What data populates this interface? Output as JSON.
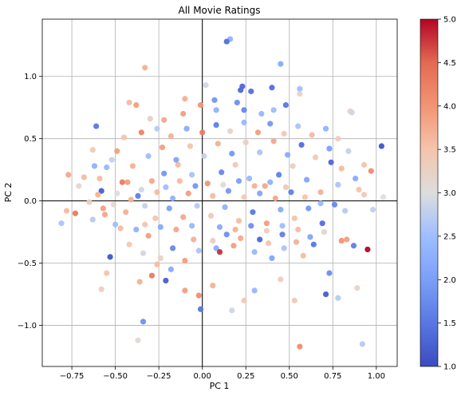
{
  "chart_data": {
    "type": "scatter",
    "title": "All Movie Ratings",
    "xlabel": "PC 1",
    "ylabel": "PC 2",
    "xlim": [
      -0.92,
      1.12
    ],
    "ylim": [
      -1.33,
      1.46
    ],
    "xticks": [
      -0.75,
      -0.5,
      -0.25,
      0.0,
      0.25,
      0.5,
      0.75,
      1.0
    ],
    "xtick_labels": [
      "−0.75",
      "−0.50",
      "−0.25",
      "0.00",
      "0.25",
      "0.50",
      "0.75",
      "1.00"
    ],
    "yticks": [
      -1.0,
      -0.5,
      0.0,
      0.5,
      1.0
    ],
    "ytick_labels": [
      "−1.0",
      "−0.5",
      "0.0",
      "0.5",
      "1.0"
    ],
    "grid": true,
    "origin_lines": true,
    "colormap": "coolwarm",
    "colorbar": {
      "range": [
        1.0,
        5.0
      ],
      "ticks": [
        1.0,
        1.5,
        2.0,
        2.5,
        3.0,
        3.5,
        4.0,
        4.5,
        5.0
      ],
      "tick_labels": [
        "1.0",
        "1.5",
        "2.0",
        "2.5",
        "3.0",
        "3.5",
        "4.0",
        "4.5",
        "5.0"
      ],
      "low_color": "#3b4cc0",
      "mid_color": "#dddddd",
      "high_color": "#b40426"
    },
    "points": [
      [
        0.16,
        1.3,
        2.3
      ],
      [
        0.14,
        1.28,
        1.4
      ],
      [
        0.45,
        1.1,
        2.2
      ],
      [
        0.23,
        0.92,
        1.3
      ],
      [
        0.22,
        0.89,
        1.3
      ],
      [
        0.28,
        0.88,
        1.4
      ],
      [
        0.4,
        0.91,
        1.4
      ],
      [
        -0.33,
        1.07,
        3.7
      ],
      [
        0.02,
        0.93,
        2.9
      ],
      [
        0.41,
        0.73,
        2.5
      ],
      [
        0.56,
        0.9,
        2.5
      ],
      [
        0.08,
        0.73,
        2.3
      ],
      [
        0.2,
        0.79,
        1.8
      ],
      [
        0.07,
        0.81,
        1.9
      ],
      [
        0.24,
        0.73,
        1.7
      ],
      [
        0.34,
        0.7,
        2.4
      ],
      [
        0.85,
        0.72,
        3.3
      ],
      [
        -0.38,
        0.77,
        3.9
      ],
      [
        -0.22,
        0.65,
        3.8
      ],
      [
        -0.11,
        0.7,
        3.9
      ],
      [
        -0.01,
        0.77,
        4.0
      ],
      [
        -0.1,
        0.82,
        3.7
      ],
      [
        0.48,
        0.77,
        1.5
      ],
      [
        0.56,
        0.86,
        3.2
      ],
      [
        0.86,
        0.71,
        2.9
      ],
      [
        -0.61,
        0.6,
        1.5
      ],
      [
        -0.63,
        0.41,
        3.4
      ],
      [
        -0.42,
        0.79,
        3.6
      ],
      [
        -0.3,
        0.66,
        3.3
      ],
      [
        1.03,
        0.44,
        1.1
      ],
      [
        0.93,
        0.29,
        3.5
      ],
      [
        0.97,
        0.24,
        4.1
      ],
      [
        -0.59,
        0.18,
        3.6
      ],
      [
        -0.55,
        0.27,
        2.4
      ],
      [
        -0.52,
        0.33,
        2.8
      ],
      [
        -0.58,
        0.08,
        1.2
      ],
      [
        -0.71,
        0.12,
        3.1
      ],
      [
        -0.77,
        0.21,
        3.8
      ],
      [
        -0.6,
        0.05,
        3.7
      ],
      [
        -0.46,
        0.15,
        4.3
      ],
      [
        -0.78,
        -0.08,
        3.6
      ],
      [
        -0.81,
        -0.18,
        2.6
      ],
      [
        -0.73,
        -0.1,
        4.3
      ],
      [
        -0.53,
        -0.45,
        1.1
      ],
      [
        -0.55,
        -0.58,
        3.5
      ],
      [
        -0.58,
        -0.71,
        3.3
      ],
      [
        -0.36,
        -0.65,
        3.7
      ],
      [
        -0.34,
        -0.97,
        1.8
      ],
      [
        -0.37,
        -1.12,
        3.1
      ],
      [
        -0.29,
        -0.6,
        4.3
      ],
      [
        -0.21,
        -0.64,
        1.2
      ],
      [
        -0.1,
        -0.72,
        3.9
      ],
      [
        -0.02,
        -0.76,
        4.1
      ],
      [
        -0.01,
        -0.87,
        1.5
      ],
      [
        0.06,
        -0.68,
        3.7
      ],
      [
        0.17,
        -0.88,
        2.9
      ],
      [
        0.24,
        -0.8,
        3.4
      ],
      [
        0.3,
        -0.72,
        2.4
      ],
      [
        0.45,
        -0.63,
        3.3
      ],
      [
        0.53,
        -0.8,
        3.4
      ],
      [
        0.56,
        -1.17,
        4.1
      ],
      [
        0.73,
        -0.58,
        1.8
      ],
      [
        0.78,
        -0.78,
        2.7
      ],
      [
        0.71,
        -0.75,
        1.2
      ],
      [
        0.89,
        -0.7,
        3.2
      ],
      [
        0.92,
        -1.15,
        2.7
      ],
      [
        0.95,
        -0.39,
        5.0
      ],
      [
        0.83,
        -0.31,
        3.9
      ],
      [
        0.87,
        -0.36,
        1.6
      ],
      [
        0.8,
        -0.32,
        4.0
      ],
      [
        1.04,
        0.03,
        3.0
      ],
      [
        0.98,
        -0.07,
        2.8
      ],
      [
        0.93,
        0.05,
        3.4
      ],
      [
        0.88,
        0.18,
        2.2
      ],
      [
        0.9,
        0.09,
        3.5
      ],
      [
        0.74,
        0.31,
        1.3
      ],
      [
        0.78,
        0.13,
        2.6
      ],
      [
        0.82,
        -0.08,
        2.7
      ],
      [
        0.69,
        -0.18,
        1.4
      ],
      [
        0.64,
        -0.35,
        1.5
      ],
      [
        0.58,
        -0.44,
        3.6
      ],
      [
        0.47,
        -0.38,
        2.6
      ],
      [
        0.4,
        -0.46,
        2.1
      ],
      [
        0.33,
        -0.31,
        1.3
      ],
      [
        0.18,
        -0.36,
        3.9
      ],
      [
        0.08,
        -0.38,
        2.2
      ],
      [
        0.1,
        -0.41,
        4.8
      ],
      [
        -0.05,
        -0.31,
        3.7
      ],
      [
        -0.17,
        -0.38,
        1.7
      ],
      [
        -0.24,
        -0.46,
        3.2
      ],
      [
        -0.31,
        -0.28,
        3.9
      ],
      [
        -0.38,
        -0.23,
        2.3
      ],
      [
        -0.44,
        -0.09,
        3.7
      ],
      [
        -0.37,
        0.04,
        1.6
      ],
      [
        -0.29,
        0.16,
        3.8
      ],
      [
        -0.22,
        0.22,
        1.9
      ],
      [
        -0.14,
        0.29,
        3.6
      ],
      [
        -0.06,
        0.21,
        2.6
      ],
      [
        0.03,
        0.14,
        4.0
      ],
      [
        0.11,
        0.23,
        1.7
      ],
      [
        0.19,
        0.29,
        3.4
      ],
      [
        0.27,
        0.18,
        2.4
      ],
      [
        0.36,
        0.12,
        3.8
      ],
      [
        0.44,
        0.21,
        1.6
      ],
      [
        0.52,
        0.28,
        3.3
      ],
      [
        0.6,
        0.17,
        2.1
      ],
      [
        0.68,
        0.07,
        3.7
      ],
      [
        0.61,
        -0.06,
        1.9
      ],
      [
        0.53,
        -0.14,
        3.5
      ],
      [
        0.45,
        -0.07,
        2.2
      ],
      [
        0.37,
        -0.18,
        3.9
      ],
      [
        0.29,
        -0.09,
        1.5
      ],
      [
        0.21,
        -0.16,
        3.6
      ],
      [
        0.13,
        -0.05,
        2.3
      ],
      [
        0.05,
        -0.12,
        3.4
      ],
      [
        -0.03,
        -0.04,
        2.7
      ],
      [
        -0.11,
        -0.13,
        3.8
      ],
      [
        -0.19,
        -0.06,
        2.0
      ],
      [
        -0.27,
        -0.14,
        3.5
      ],
      [
        -0.35,
        0.09,
        2.9
      ],
      [
        -0.43,
        0.15,
        3.9
      ],
      [
        -0.51,
        -0.03,
        3.1
      ],
      [
        -0.47,
        -0.22,
        3.6
      ],
      [
        -0.4,
        0.28,
        3.7
      ],
      [
        -0.31,
        0.36,
        2.5
      ],
      [
        -0.23,
        0.43,
        3.9
      ],
      [
        -0.15,
        0.33,
        2.1
      ],
      [
        -0.07,
        0.44,
        3.5
      ],
      [
        0.01,
        0.36,
        2.8
      ],
      [
        0.09,
        0.46,
        3.7
      ],
      [
        0.17,
        0.38,
        1.9
      ],
      [
        0.25,
        0.47,
        3.3
      ],
      [
        0.33,
        0.39,
        2.6
      ],
      [
        0.41,
        0.48,
        3.8
      ],
      [
        0.49,
        0.37,
        2.2
      ],
      [
        0.57,
        0.45,
        1.4
      ],
      [
        0.65,
        0.35,
        3.4
      ],
      [
        0.73,
        0.42,
        2.0
      ],
      [
        0.8,
        0.26,
        3.6
      ],
      [
        0.76,
        -0.03,
        1.7
      ],
      [
        0.7,
        -0.25,
        3.2
      ],
      [
        0.62,
        -0.29,
        2.1
      ],
      [
        0.54,
        -0.33,
        3.7
      ],
      [
        0.46,
        -0.27,
        1.6
      ],
      [
        0.38,
        -0.34,
        3.5
      ],
      [
        0.3,
        -0.41,
        2.4
      ],
      [
        0.22,
        -0.3,
        3.8
      ],
      [
        0.14,
        -0.27,
        1.8
      ],
      [
        0.06,
        -0.32,
        3.3
      ],
      [
        -0.02,
        -0.4,
        2.6
      ],
      [
        -0.1,
        -0.48,
        3.9
      ],
      [
        -0.18,
        -0.55,
        2.2
      ],
      [
        -0.26,
        -0.51,
        3.6
      ],
      [
        -0.34,
        -0.42,
        2.9
      ],
      [
        -0.42,
        -0.35,
        3.4
      ],
      [
        -0.5,
        -0.19,
        2.5
      ],
      [
        -0.56,
        -0.11,
        3.8
      ],
      [
        -0.65,
        -0.01,
        3.3
      ],
      [
        -0.68,
        0.19,
        3.6
      ],
      [
        -0.62,
        0.28,
        2.3
      ],
      [
        -0.49,
        0.4,
        3.9
      ],
      [
        -0.45,
        0.51,
        3.5
      ],
      [
        -0.35,
        0.55,
        4.2
      ],
      [
        -0.26,
        0.58,
        2.7
      ],
      [
        -0.18,
        0.52,
        3.7
      ],
      [
        -0.09,
        0.58,
        2.2
      ],
      [
        0.0,
        0.55,
        4.3
      ],
      [
        0.08,
        0.61,
        1.6
      ],
      [
        0.16,
        0.56,
        3.2
      ],
      [
        0.24,
        0.63,
        2.4
      ],
      [
        0.32,
        0.55,
        3.9
      ],
      [
        0.39,
        0.62,
        1.9
      ],
      [
        0.47,
        0.54,
        3.4
      ],
      [
        0.55,
        0.6,
        2.6
      ],
      [
        0.63,
        0.53,
        3.6
      ],
      [
        0.71,
        0.58,
        2.3
      ],
      [
        0.78,
        0.5,
        3.3
      ],
      [
        0.84,
        0.4,
        2.8
      ],
      [
        0.06,
        0.04,
        3.6
      ],
      [
        0.15,
        0.08,
        1.9
      ],
      [
        0.24,
        0.03,
        3.4
      ],
      [
        0.33,
        0.06,
        2.1
      ],
      [
        0.42,
        0.02,
        3.8
      ],
      [
        0.51,
        0.07,
        1.6
      ],
      [
        0.59,
        0.03,
        3.5
      ],
      [
        0.68,
        -0.02,
        2.4
      ],
      [
        -0.08,
        0.06,
        3.9
      ],
      [
        -0.17,
        0.02,
        2.3
      ],
      [
        -0.26,
        0.07,
        3.6
      ],
      [
        -0.33,
        -0.04,
        2.8
      ],
      [
        -0.41,
        0.01,
        3.7
      ],
      [
        -0.49,
        0.06,
        3.0
      ],
      [
        -0.57,
        -0.06,
        3.9
      ],
      [
        -0.63,
        -0.15,
        2.7
      ],
      [
        0.1,
        -0.21,
        2.2
      ],
      [
        0.19,
        -0.23,
        3.7
      ],
      [
        0.28,
        -0.2,
        1.8
      ],
      [
        0.37,
        -0.24,
        3.3
      ],
      [
        0.46,
        -0.2,
        2.5
      ],
      [
        0.55,
        -0.23,
        3.6
      ],
      [
        -0.06,
        -0.2,
        2.4
      ],
      [
        -0.15,
        -0.23,
        3.8
      ],
      [
        -0.24,
        -0.21,
        2.2
      ],
      [
        -0.33,
        -0.19,
        3.5
      ],
      [
        0.12,
        0.13,
        3.1
      ],
      [
        0.21,
        0.16,
        2.0
      ],
      [
        0.3,
        0.12,
        3.7
      ],
      [
        0.39,
        0.15,
        2.3
      ],
      [
        0.48,
        0.11,
        3.4
      ],
      [
        -0.04,
        0.12,
        1.9
      ],
      [
        -0.13,
        0.16,
        3.6
      ],
      [
        -0.21,
        0.11,
        2.5
      ]
    ]
  }
}
